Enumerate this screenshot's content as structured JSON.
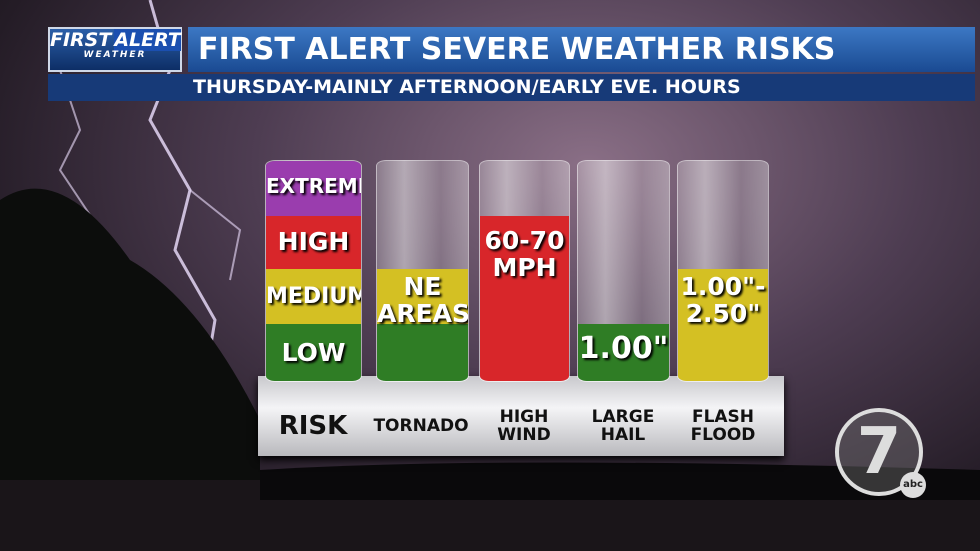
{
  "logo": {
    "line1": "FIRST",
    "line2": "ALERT",
    "line3": "WEATHER"
  },
  "header": {
    "title": "FIRST ALERT SEVERE WEATHER RISKS",
    "subtitle": "THURSDAY-MAINLY AFTERNOON/EARLY EVE. HOURS"
  },
  "legend": {
    "label": "RISK",
    "levels": [
      "EXTREME",
      "HIGH",
      "MEDIUM",
      "LOW"
    ]
  },
  "columns": [
    {
      "label": [
        "TORNADO"
      ],
      "text": [
        "NE",
        "AREAS"
      ]
    },
    {
      "label": [
        "HIGH",
        "WIND"
      ],
      "text": [
        "60-70",
        "MPH"
      ]
    },
    {
      "label": [
        "LARGE",
        "HAIL"
      ],
      "text": [
        "1.00\""
      ]
    },
    {
      "label": [
        "FLASH",
        "FLOOD"
      ],
      "text": [
        "1.00\"-",
        "2.50\""
      ]
    }
  ],
  "station": {
    "number": "7",
    "network": "abc"
  }
}
